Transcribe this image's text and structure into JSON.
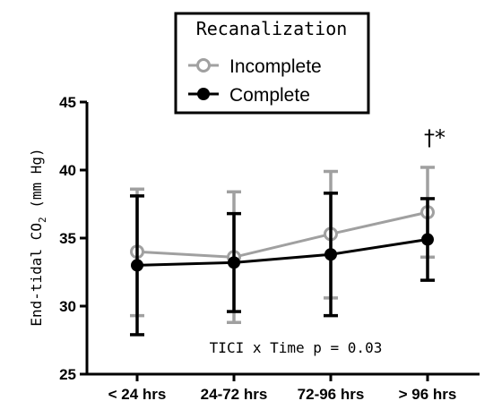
{
  "chart_data": {
    "type": "line",
    "title": "",
    "xlabel": "",
    "ylabel": "End-tidal CO",
    "ylabel_sub": "2",
    "ylabel_unit": " (mm Hg)",
    "categories": [
      "< 24 hrs",
      "24-72 hrs",
      "72-96 hrs",
      "> 96 hrs"
    ],
    "ylim": [
      25,
      45
    ],
    "yticks": [
      25,
      30,
      35,
      40,
      45
    ],
    "legend": {
      "title": "Recanalization",
      "position": "top-center"
    },
    "series": [
      {
        "name": "Incomplete",
        "color": "#a0a0a0",
        "marker": "open-circle",
        "values": [
          34.0,
          33.6,
          35.3,
          36.9
        ],
        "err_upper": [
          38.6,
          38.4,
          39.9,
          40.2
        ],
        "err_lower": [
          29.3,
          28.8,
          30.6,
          33.6
        ]
      },
      {
        "name": "Complete",
        "color": "#000000",
        "marker": "filled-circle",
        "values": [
          33.0,
          33.2,
          33.8,
          34.9
        ],
        "err_upper": [
          38.1,
          36.8,
          38.3,
          37.9
        ],
        "err_lower": [
          27.9,
          29.6,
          29.3,
          31.9
        ]
      }
    ],
    "annotations": {
      "stat_text": "TICI x Time p = 0.03",
      "significance_marker": "†*",
      "significance_category": "> 96 hrs"
    }
  }
}
